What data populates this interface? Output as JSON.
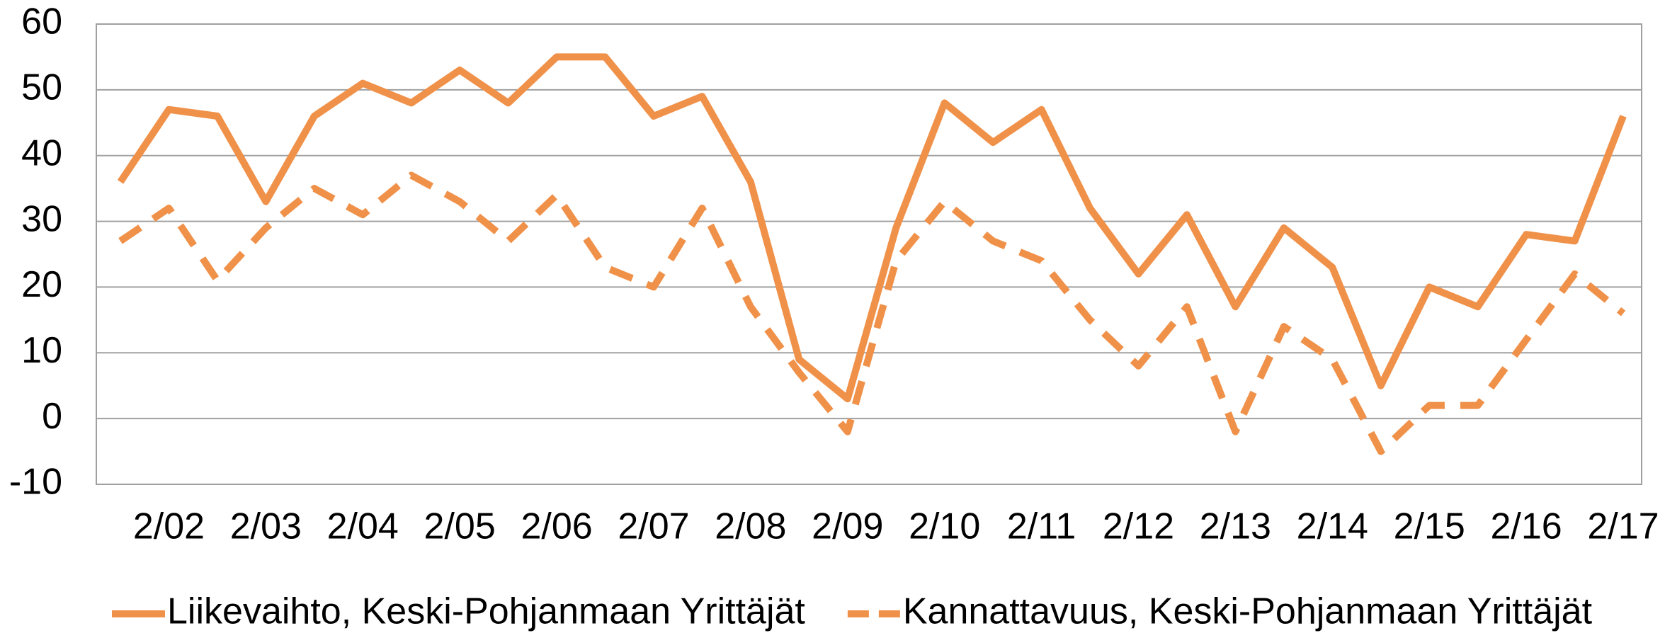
{
  "chart_data": {
    "type": "line",
    "categories": [
      null,
      "2/02",
      null,
      "2/03",
      null,
      "2/04",
      null,
      "2/05",
      null,
      "2/06",
      null,
      "2/07",
      null,
      "2/08",
      null,
      "2/09",
      null,
      "2/10",
      null,
      "2/11",
      null,
      "2/12",
      null,
      "2/13",
      null,
      "2/14",
      null,
      "2/15",
      null,
      "2/16",
      null,
      "2/17"
    ],
    "series": [
      {
        "name": "Liikevaihto, Keski-Pohjanmaan Yrittäjät",
        "color": "#f0914a",
        "dash": "solid",
        "values": [
          36,
          47,
          46,
          33,
          46,
          51,
          48,
          53,
          48,
          55,
          55,
          46,
          49,
          36,
          9,
          3,
          29,
          48,
          42,
          47,
          32,
          22,
          31,
          17,
          29,
          23,
          5,
          20,
          17,
          28,
          27,
          46
        ]
      },
      {
        "name": "Kannattavuus, Keski-Pohjanmaan Yrittäjät",
        "color": "#f0914a",
        "dash": "dashed",
        "values": [
          27,
          32,
          21,
          29,
          35,
          31,
          37,
          33,
          27,
          34,
          23,
          20,
          32,
          17,
          7,
          -2,
          24,
          33,
          27,
          24,
          15,
          8,
          17,
          -2,
          14,
          9,
          -5,
          2,
          2,
          12,
          22,
          16
        ]
      }
    ],
    "ylim": [
      -10,
      60
    ],
    "yticks": [
      -10,
      0,
      10,
      20,
      30,
      40,
      50,
      60
    ],
    "grid": true,
    "legend": "bottom"
  }
}
